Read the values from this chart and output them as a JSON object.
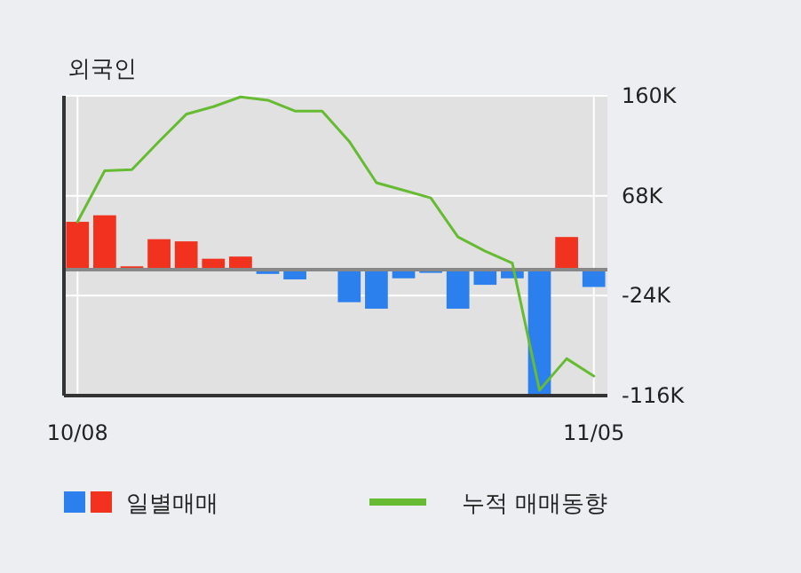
{
  "chart_data": {
    "type": "bar",
    "title": "외국인",
    "categories": [
      "10/08",
      null,
      null,
      null,
      null,
      null,
      null,
      null,
      null,
      null,
      null,
      null,
      null,
      null,
      null,
      null,
      null,
      null,
      null,
      "11/05"
    ],
    "series": [
      {
        "name": "일별매매",
        "type": "bar",
        "colors": [
          "#f0321e",
          "#f0321e",
          "#f0321e",
          "#f0321e",
          "#f0321e",
          "#f0321e",
          "#f0321e",
          "#2b80ee",
          "#2b80ee",
          "#2b80ee",
          "#2b80ee",
          "#2b80ee",
          "#2b80ee",
          "#2b80ee",
          "#2b80ee",
          "#2b80ee",
          "#2b80ee",
          "#2b80ee",
          "#f0321e",
          "#2b80ee"
        ],
        "values": [
          44000,
          50000,
          3000,
          28000,
          26000,
          10000,
          12000,
          -4000,
          -9000,
          0,
          -30000,
          -36000,
          -8000,
          -3000,
          -36000,
          -14000,
          -8000,
          -115000,
          30000,
          -16000
        ]
      },
      {
        "name": "누적 매매동향",
        "type": "line",
        "color": "#66bb33",
        "values": [
          44000,
          91000,
          92000,
          118000,
          143000,
          150000,
          159000,
          156000,
          146000,
          146000,
          118000,
          80000,
          73000,
          66000,
          30000,
          17000,
          6000,
          -111000,
          -82000,
          -98000
        ]
      }
    ],
    "ylim": [
      -116000,
      160000
    ],
    "yticks": [
      {
        "value": 160000,
        "label": "160K"
      },
      {
        "value": 68000,
        "label": "68K"
      },
      {
        "value": -24000,
        "label": "-24K"
      },
      {
        "value": -116000,
        "label": "-116K"
      }
    ],
    "grid": true,
    "legend": "bottom"
  }
}
